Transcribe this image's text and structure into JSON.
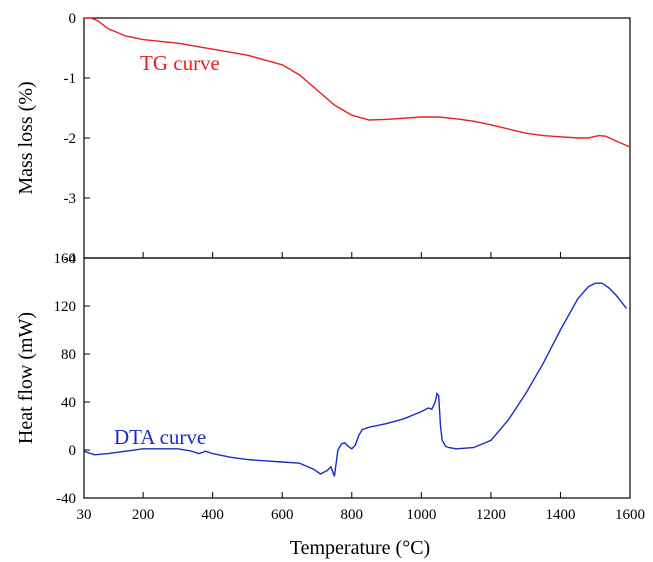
{
  "chart_data": [
    {
      "type": "line",
      "panel": "top",
      "ylabel": "Mass loss (%)",
      "ylim": [
        -4,
        0
      ],
      "yticks": [
        "0",
        "-1",
        "-2",
        "-3",
        "-4"
      ],
      "xlim": [
        30,
        1600
      ],
      "grid": false,
      "color": "#e8201f",
      "series": [
        {
          "name": "TG curve",
          "x": [
            30,
            50,
            70,
            100,
            150,
            200,
            300,
            400,
            500,
            600,
            650,
            700,
            750,
            800,
            850,
            900,
            1000,
            1050,
            1100,
            1150,
            1200,
            1300,
            1350,
            1400,
            1450,
            1480,
            1510,
            1530,
            1560,
            1600
          ],
          "y": [
            0.0,
            0.0,
            -0.05,
            -0.18,
            -0.3,
            -0.36,
            -0.42,
            -0.52,
            -0.62,
            -0.78,
            -0.95,
            -1.2,
            -1.45,
            -1.62,
            -1.7,
            -1.69,
            -1.65,
            -1.65,
            -1.68,
            -1.72,
            -1.78,
            -1.92,
            -1.96,
            -1.98,
            -2.0,
            -2.0,
            -1.96,
            -1.97,
            -2.05,
            -2.15
          ]
        }
      ]
    },
    {
      "type": "line",
      "panel": "bottom",
      "ylabel": "Heat flow (mW)",
      "xlabel": "Temperature (°C)",
      "ylim": [
        -40,
        160
      ],
      "yticks": [
        "160",
        "120",
        "80",
        "40",
        "0",
        "-40"
      ],
      "xlim": [
        30,
        1600
      ],
      "xticks": [
        "30",
        "200",
        "400",
        "600",
        "800",
        "1000",
        "1200",
        "1400",
        "1600"
      ],
      "grid": false,
      "color": "#1d2bc8",
      "series": [
        {
          "name": "DTA curve",
          "x": [
            30,
            60,
            100,
            150,
            200,
            250,
            300,
            340,
            360,
            380,
            400,
            450,
            500,
            550,
            600,
            650,
            690,
            710,
            730,
            740,
            750,
            760,
            770,
            780,
            790,
            800,
            810,
            820,
            830,
            850,
            900,
            950,
            1000,
            1020,
            1030,
            1040,
            1045,
            1050,
            1055,
            1060,
            1070,
            1080,
            1100,
            1150,
            1200,
            1250,
            1300,
            1350,
            1400,
            1450,
            1480,
            1500,
            1520,
            1540,
            1560,
            1590
          ],
          "y": [
            -1,
            -4,
            -3,
            -1,
            1,
            1,
            1,
            -1,
            -3,
            -1,
            -3,
            -6,
            -8,
            -9,
            -10,
            -11,
            -16,
            -20,
            -17,
            -14,
            -22,
            0,
            5,
            6,
            3,
            1,
            4,
            12,
            17,
            19,
            22,
            26,
            32,
            35,
            34,
            40,
            47,
            45,
            20,
            8,
            3,
            2,
            1,
            2,
            8,
            25,
            47,
            72,
            100,
            126,
            136,
            139,
            139,
            135,
            129,
            118
          ]
        }
      ]
    }
  ]
}
